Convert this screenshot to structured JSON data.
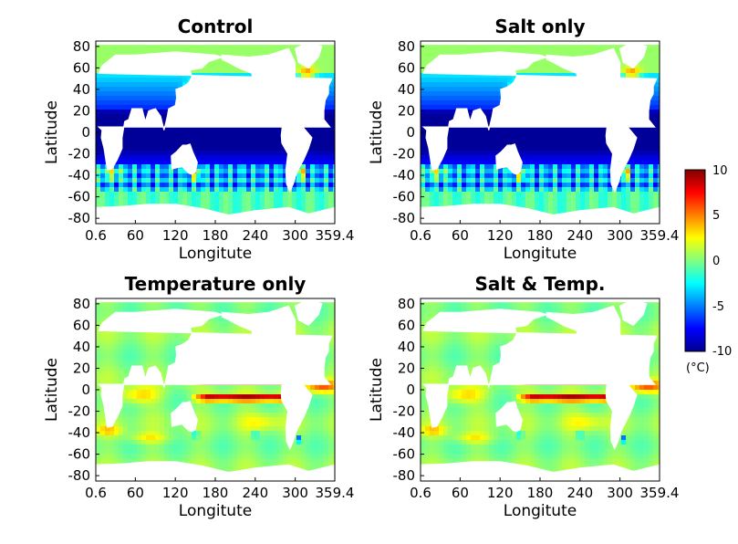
{
  "chart_data": [
    {
      "type": "heatmap",
      "title": "Control",
      "xlabel": "Longitute",
      "ylabel": "Latitude",
      "xticks": [
        "0.6",
        "60",
        "120",
        "180",
        "240",
        "300",
        "359.4"
      ],
      "yticks": [
        "80",
        "60",
        "40",
        "20",
        "0",
        "-20",
        "-40",
        "-60",
        "-80"
      ],
      "xlim": [
        0.6,
        359.4
      ],
      "ylim": [
        -85,
        85
      ],
      "pattern": "cold"
    },
    {
      "type": "heatmap",
      "title": "Salt only",
      "xlabel": "Longitute",
      "ylabel": "Latitude",
      "xticks": [
        "0.6",
        "60",
        "120",
        "180",
        "240",
        "300",
        "359.4"
      ],
      "yticks": [
        "80",
        "60",
        "40",
        "20",
        "0",
        "-20",
        "-40",
        "-60",
        "-80"
      ],
      "xlim": [
        0.6,
        359.4
      ],
      "ylim": [
        -85,
        85
      ],
      "pattern": "cold"
    },
    {
      "type": "heatmap",
      "title": "Temperature only",
      "xlabel": "Longitute",
      "ylabel": "Latitude",
      "xticks": [
        "0.6",
        "60",
        "120",
        "180",
        "240",
        "300",
        "359.4"
      ],
      "yticks": [
        "80",
        "60",
        "40",
        "20",
        "0",
        "-20",
        "-40",
        "-60",
        "-80"
      ],
      "xlim": [
        0.6,
        359.4
      ],
      "ylim": [
        -85,
        85
      ],
      "pattern": "warm"
    },
    {
      "type": "heatmap",
      "title": "Salt & Temp.",
      "xlabel": "Longitute",
      "ylabel": "Latitude",
      "xticks": [
        "0.6",
        "60",
        "120",
        "180",
        "240",
        "300",
        "359.4"
      ],
      "yticks": [
        "80",
        "60",
        "40",
        "20",
        "0",
        "-20",
        "-40",
        "-60",
        "-80"
      ],
      "xlim": [
        0.6,
        359.4
      ],
      "ylim": [
        -85,
        85
      ],
      "pattern": "warm"
    }
  ],
  "colorbar": {
    "label": "(°C)",
    "min": -10,
    "max": 10,
    "ticks": [
      "10",
      "5",
      "0",
      "-5",
      "-10"
    ]
  },
  "colors": {
    "land": "#ffffff",
    "frame": "#000000"
  }
}
